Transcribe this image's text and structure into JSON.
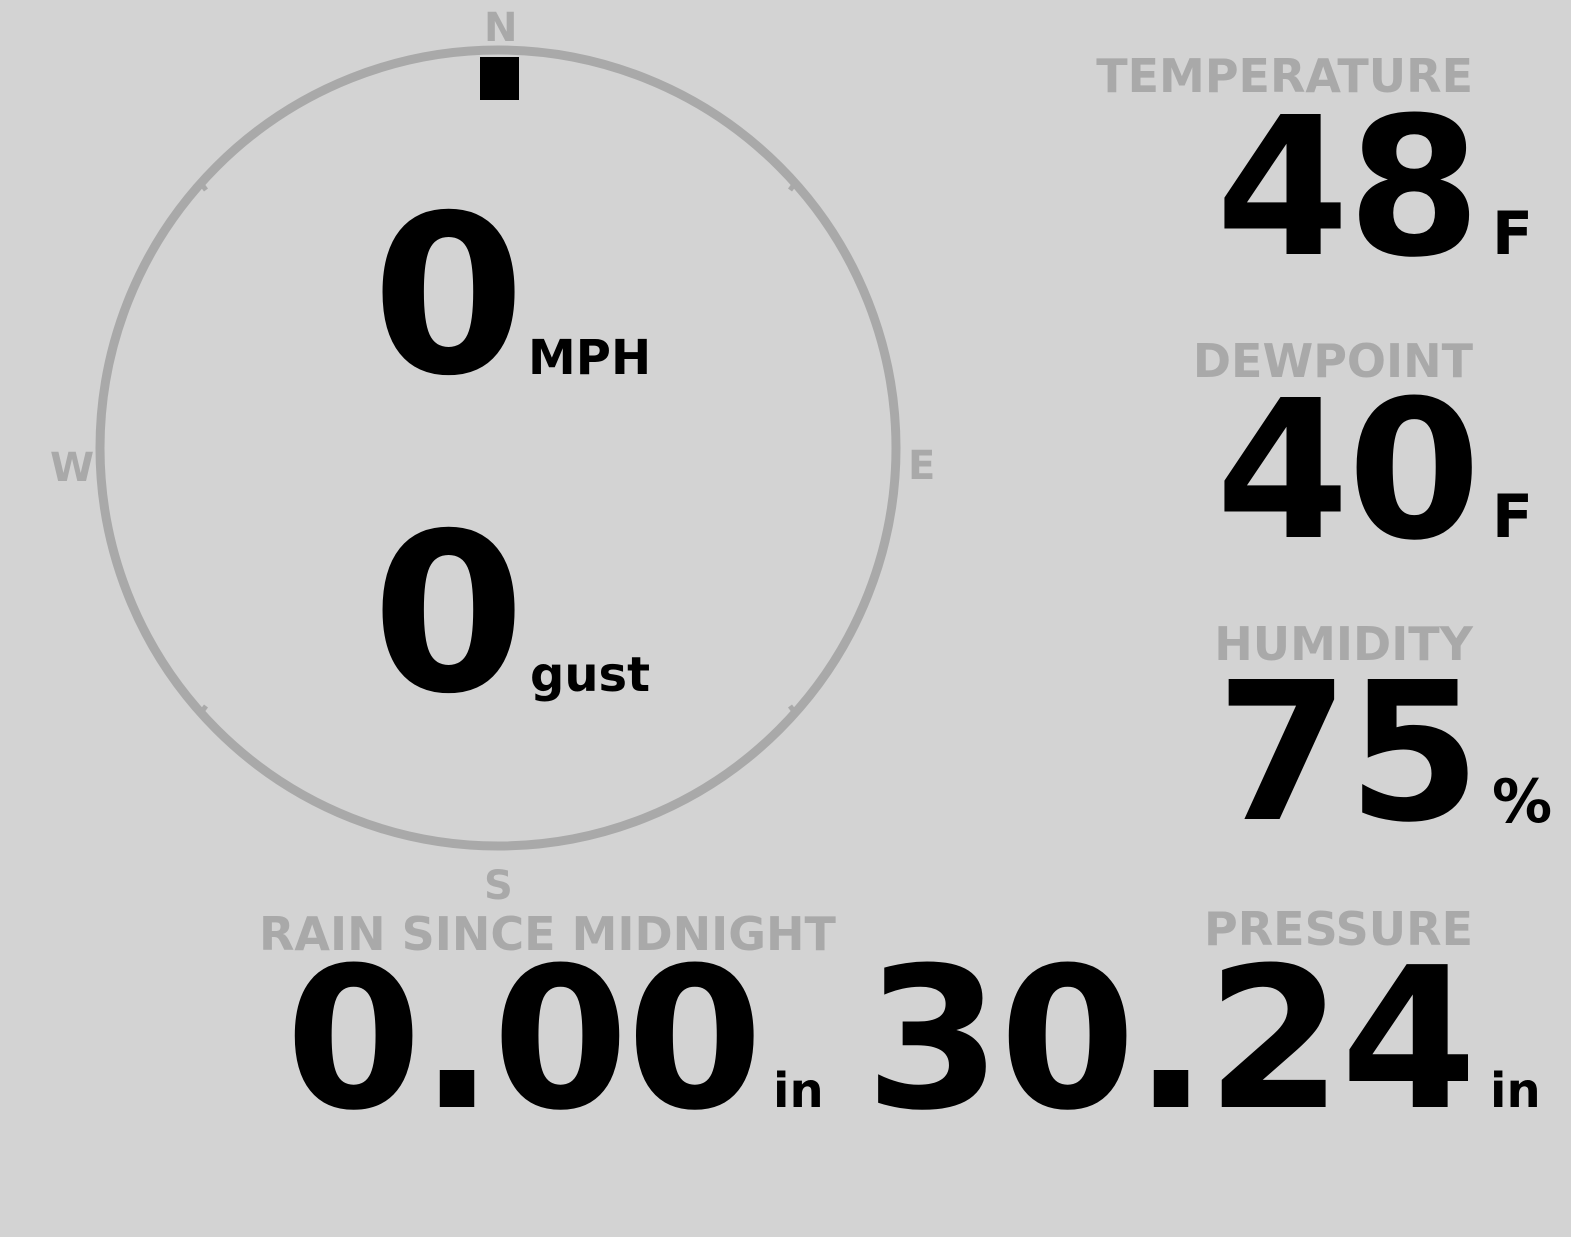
{
  "wind": {
    "speed": "0",
    "speed_unit": "MPH",
    "gust": "0",
    "gust_unit": "gust",
    "direction_deg": 0,
    "compass": {
      "n": "N",
      "s": "S",
      "e": "E",
      "w": "W"
    }
  },
  "temperature": {
    "label": "TEMPERATURE",
    "value": "48",
    "unit": "F"
  },
  "dewpoint": {
    "label": "DEWPOINT",
    "value": "40",
    "unit": "F"
  },
  "humidity": {
    "label": "HUMIDITY",
    "value": "75",
    "unit": "%"
  },
  "pressure": {
    "label": "PRESSURE",
    "value": "30.24",
    "unit": "in"
  },
  "rain": {
    "label": "RAIN SINCE MIDNIGHT",
    "value": "0.00",
    "unit": "in"
  },
  "colors": {
    "background": "#d3d3d3",
    "label": "#a9a9a9",
    "value": "#000000"
  }
}
